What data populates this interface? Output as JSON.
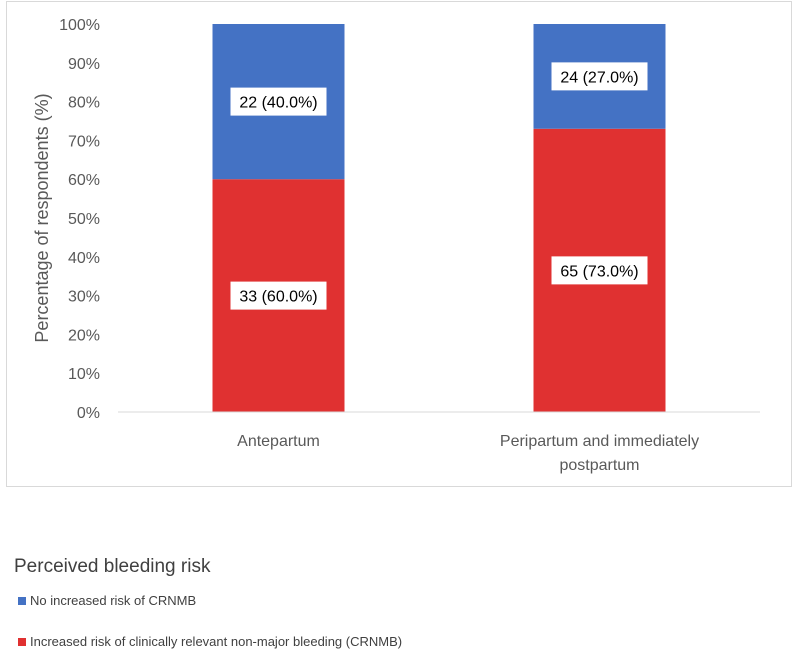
{
  "chart_data": {
    "type": "bar",
    "stacked": true,
    "categories": [
      "Antepartum",
      "Peripartum and immediately postpartum"
    ],
    "category_lines": [
      [
        "Antepartum"
      ],
      [
        "Peripartum and immediately",
        "postpartum"
      ]
    ],
    "series": [
      {
        "name": "Increased risk of clinically relevant non-major bleeding (CRNMB)",
        "color": "#e03131",
        "values": [
          60.0,
          73.0
        ],
        "labels": [
          "33 (60.0%)",
          "65 (73.0%)"
        ]
      },
      {
        "name": "No increased risk of CRNMB",
        "color": "#4472c4",
        "values": [
          40.0,
          27.0
        ],
        "labels": [
          "22 (40.0%)",
          "24 (27.0%)"
        ]
      }
    ],
    "ylabel": "Percentage of respondents (%)",
    "yticks": [
      "0%",
      "10%",
      "20%",
      "30%",
      "40%",
      "50%",
      "60%",
      "70%",
      "80%",
      "90%",
      "100%"
    ],
    "ylim": [
      0,
      100
    ],
    "grid": false,
    "legend_title": "Perceived bleeding risk",
    "legend_position": "bottom-left"
  }
}
